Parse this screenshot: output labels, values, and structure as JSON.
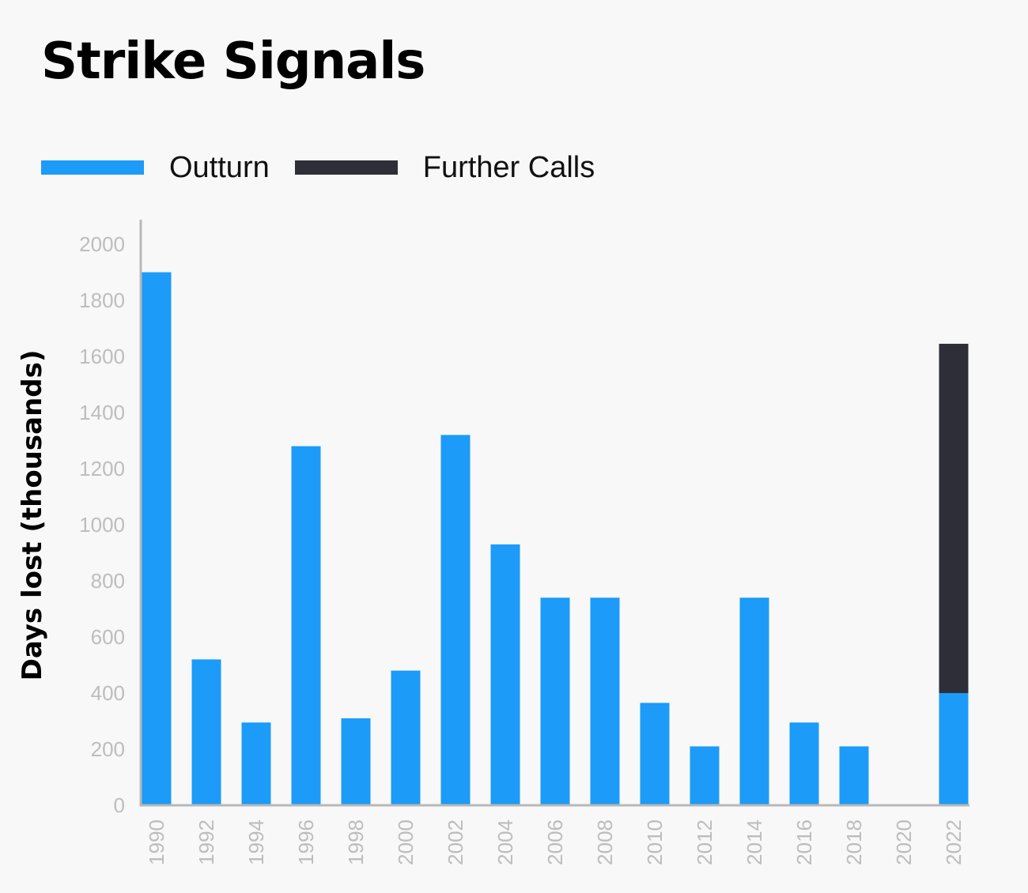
{
  "title": "Strike Signals",
  "legend": [
    {
      "label": "Outturn",
      "color": "#1c9bf8"
    },
    {
      "label": "Further Calls",
      "color": "#2e2e38"
    }
  ],
  "colors": {
    "axis": "#b8b8b8",
    "tick_text": "#bdbdbd",
    "background": "#f8f8f8"
  },
  "chart_data": {
    "type": "bar",
    "stacked": true,
    "title": "Strike Signals",
    "xlabel": "",
    "ylabel": "Days lost (thousands)",
    "ylim": [
      0,
      2000
    ],
    "yticks": [
      0,
      200,
      400,
      600,
      800,
      1000,
      1200,
      1400,
      1600,
      1800,
      2000
    ],
    "grid": false,
    "legend_position": "top-left",
    "categories": [
      "1990",
      "1992",
      "1994",
      "1996",
      "1998",
      "2000",
      "2002",
      "2004",
      "2006",
      "2008",
      "2010",
      "2012",
      "2014",
      "2016",
      "2018",
      "2020",
      "2022"
    ],
    "series": [
      {
        "name": "Outturn",
        "color": "#1c9bf8",
        "values": [
          1900,
          520,
          295,
          1280,
          310,
          480,
          1320,
          930,
          740,
          740,
          365,
          210,
          740,
          295,
          210,
          0,
          400
        ]
      },
      {
        "name": "Further Calls",
        "color": "#2e2e38",
        "values": [
          0,
          0,
          0,
          0,
          0,
          0,
          0,
          0,
          0,
          0,
          0,
          0,
          0,
          0,
          0,
          0,
          1245
        ]
      }
    ]
  }
}
